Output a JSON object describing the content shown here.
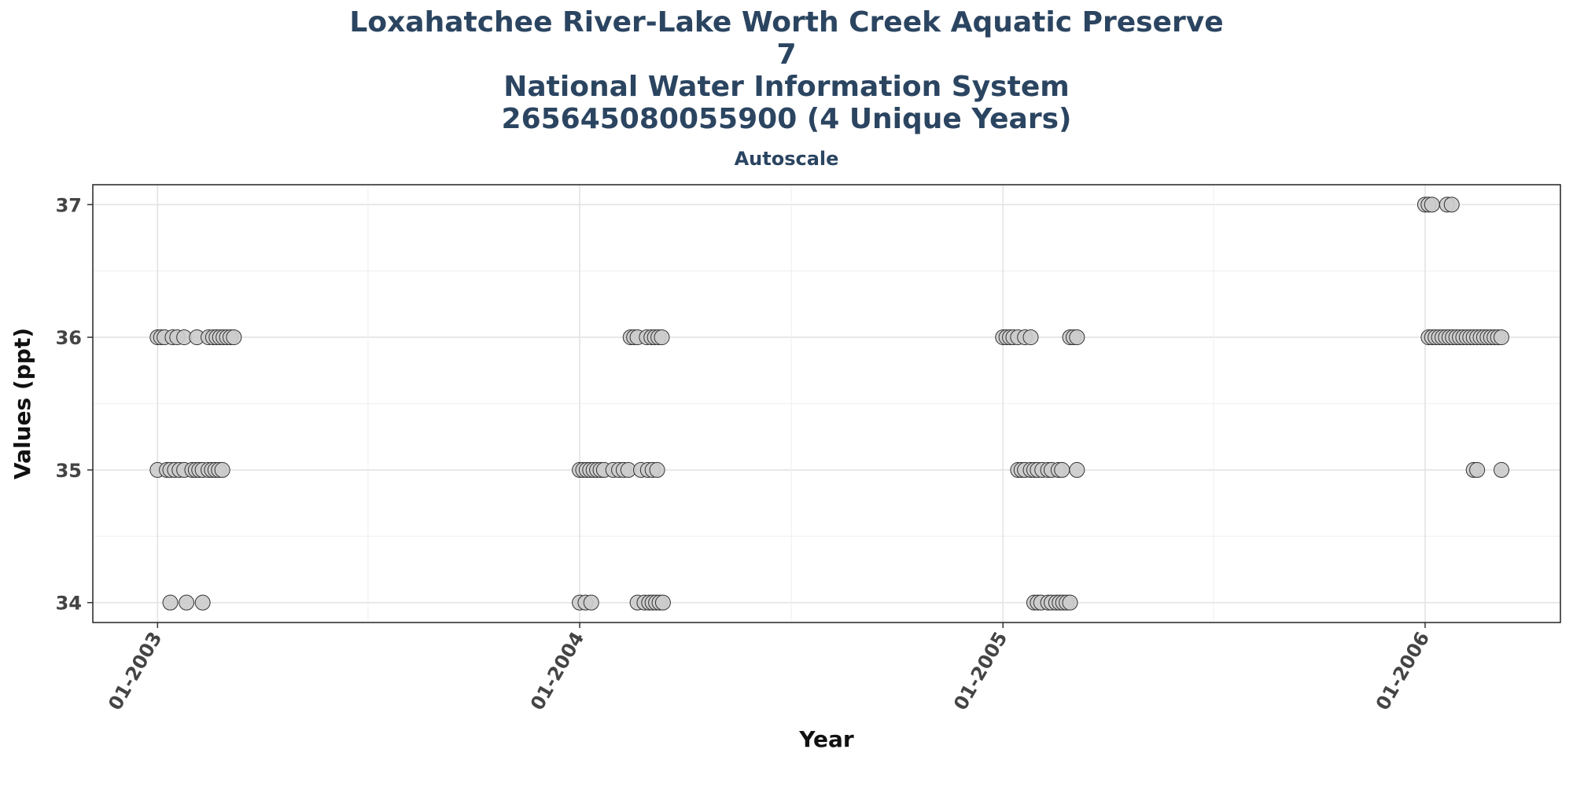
{
  "chart_data": {
    "type": "scatter",
    "title_lines": [
      "Loxahatchee River-Lake Worth Creek Aquatic Preserve",
      "7",
      "National Water Information System",
      "265645080055900 (4 Unique Years)"
    ],
    "subtitle": "Autoscale",
    "xlabel": "Year",
    "ylabel": "Values (ppt)",
    "x_ticks": [
      "01-2003",
      "01-2004",
      "01-2005",
      "01-2006"
    ],
    "y_ticks": [
      34,
      35,
      36,
      37
    ],
    "xlim": [
      "2002-11-06",
      "2006-04-28"
    ],
    "ylim": [
      33.85,
      37.15
    ],
    "grid": true,
    "legend": "none",
    "marker_color": "#cccccc",
    "marker_edge": "#333333",
    "points": [
      {
        "x": "2003-01-01",
        "y": 36
      },
      {
        "x": "2003-01-04",
        "y": 36
      },
      {
        "x": "2003-01-07",
        "y": 36
      },
      {
        "x": "2003-01-14",
        "y": 36
      },
      {
        "x": "2003-01-18",
        "y": 36
      },
      {
        "x": "2003-01-24",
        "y": 36
      },
      {
        "x": "2003-02-04",
        "y": 36
      },
      {
        "x": "2003-02-14",
        "y": 36
      },
      {
        "x": "2003-02-18",
        "y": 36
      },
      {
        "x": "2003-02-21",
        "y": 36
      },
      {
        "x": "2003-02-24",
        "y": 36
      },
      {
        "x": "2003-02-27",
        "y": 36
      },
      {
        "x": "2003-03-02",
        "y": 36
      },
      {
        "x": "2003-03-05",
        "y": 36
      },
      {
        "x": "2003-03-08",
        "y": 36
      },
      {
        "x": "2003-01-01",
        "y": 35
      },
      {
        "x": "2003-01-09",
        "y": 35
      },
      {
        "x": "2003-01-12",
        "y": 35
      },
      {
        "x": "2003-01-16",
        "y": 35
      },
      {
        "x": "2003-01-20",
        "y": 35
      },
      {
        "x": "2003-01-24",
        "y": 35
      },
      {
        "x": "2003-01-31",
        "y": 35
      },
      {
        "x": "2003-02-03",
        "y": 35
      },
      {
        "x": "2003-02-06",
        "y": 35
      },
      {
        "x": "2003-02-09",
        "y": 35
      },
      {
        "x": "2003-02-14",
        "y": 35
      },
      {
        "x": "2003-02-17",
        "y": 35
      },
      {
        "x": "2003-02-20",
        "y": 35
      },
      {
        "x": "2003-02-23",
        "y": 35
      },
      {
        "x": "2003-02-26",
        "y": 35
      },
      {
        "x": "2003-01-12",
        "y": 34
      },
      {
        "x": "2003-01-26",
        "y": 34
      },
      {
        "x": "2003-02-09",
        "y": 34
      },
      {
        "x": "2004-02-14",
        "y": 36
      },
      {
        "x": "2004-02-17",
        "y": 36
      },
      {
        "x": "2004-02-20",
        "y": 36
      },
      {
        "x": "2004-02-28",
        "y": 36
      },
      {
        "x": "2004-03-03",
        "y": 36
      },
      {
        "x": "2004-03-06",
        "y": 36
      },
      {
        "x": "2004-03-09",
        "y": 36
      },
      {
        "x": "2004-03-12",
        "y": 36
      },
      {
        "x": "2004-01-01",
        "y": 35
      },
      {
        "x": "2004-01-04",
        "y": 35
      },
      {
        "x": "2004-01-07",
        "y": 35
      },
      {
        "x": "2004-01-10",
        "y": 35
      },
      {
        "x": "2004-01-13",
        "y": 35
      },
      {
        "x": "2004-01-16",
        "y": 35
      },
      {
        "x": "2004-01-19",
        "y": 35
      },
      {
        "x": "2004-01-22",
        "y": 35
      },
      {
        "x": "2004-01-30",
        "y": 35
      },
      {
        "x": "2004-02-04",
        "y": 35
      },
      {
        "x": "2004-02-08",
        "y": 35
      },
      {
        "x": "2004-02-12",
        "y": 35
      },
      {
        "x": "2004-02-23",
        "y": 35
      },
      {
        "x": "2004-02-29",
        "y": 35
      },
      {
        "x": "2004-03-04",
        "y": 35
      },
      {
        "x": "2004-03-08",
        "y": 35
      },
      {
        "x": "2004-01-01",
        "y": 34
      },
      {
        "x": "2004-01-06",
        "y": 34
      },
      {
        "x": "2004-01-11",
        "y": 34
      },
      {
        "x": "2004-02-20",
        "y": 34
      },
      {
        "x": "2004-02-26",
        "y": 34
      },
      {
        "x": "2004-03-01",
        "y": 34
      },
      {
        "x": "2004-03-04",
        "y": 34
      },
      {
        "x": "2004-03-07",
        "y": 34
      },
      {
        "x": "2004-03-10",
        "y": 34
      },
      {
        "x": "2004-03-13",
        "y": 34
      },
      {
        "x": "2005-01-01",
        "y": 36
      },
      {
        "x": "2005-01-04",
        "y": 36
      },
      {
        "x": "2005-01-07",
        "y": 36
      },
      {
        "x": "2005-01-10",
        "y": 36
      },
      {
        "x": "2005-01-14",
        "y": 36
      },
      {
        "x": "2005-01-20",
        "y": 36
      },
      {
        "x": "2005-01-25",
        "y": 36
      },
      {
        "x": "2005-02-28",
        "y": 36
      },
      {
        "x": "2005-03-03",
        "y": 36
      },
      {
        "x": "2005-03-06",
        "y": 36
      },
      {
        "x": "2005-01-14",
        "y": 35
      },
      {
        "x": "2005-01-17",
        "y": 35
      },
      {
        "x": "2005-01-20",
        "y": 35
      },
      {
        "x": "2005-01-25",
        "y": 35
      },
      {
        "x": "2005-01-28",
        "y": 35
      },
      {
        "x": "2005-01-31",
        "y": 35
      },
      {
        "x": "2005-02-04",
        "y": 35
      },
      {
        "x": "2005-02-09",
        "y": 35
      },
      {
        "x": "2005-02-12",
        "y": 35
      },
      {
        "x": "2005-02-18",
        "y": 35
      },
      {
        "x": "2005-02-21",
        "y": 35
      },
      {
        "x": "2005-03-06",
        "y": 35
      },
      {
        "x": "2005-01-28",
        "y": 34
      },
      {
        "x": "2005-01-31",
        "y": 34
      },
      {
        "x": "2005-02-03",
        "y": 34
      },
      {
        "x": "2005-02-09",
        "y": 34
      },
      {
        "x": "2005-02-12",
        "y": 34
      },
      {
        "x": "2005-02-16",
        "y": 34
      },
      {
        "x": "2005-02-19",
        "y": 34
      },
      {
        "x": "2005-02-22",
        "y": 34
      },
      {
        "x": "2005-02-25",
        "y": 34
      },
      {
        "x": "2005-02-28",
        "y": 34
      },
      {
        "x": "2006-01-01",
        "y": 37
      },
      {
        "x": "2006-01-04",
        "y": 37
      },
      {
        "x": "2006-01-07",
        "y": 37
      },
      {
        "x": "2006-01-20",
        "y": 37
      },
      {
        "x": "2006-01-24",
        "y": 37
      },
      {
        "x": "2006-01-04",
        "y": 36
      },
      {
        "x": "2006-01-07",
        "y": 36
      },
      {
        "x": "2006-01-10",
        "y": 36
      },
      {
        "x": "2006-01-13",
        "y": 36
      },
      {
        "x": "2006-01-16",
        "y": 36
      },
      {
        "x": "2006-01-19",
        "y": 36
      },
      {
        "x": "2006-01-22",
        "y": 36
      },
      {
        "x": "2006-01-25",
        "y": 36
      },
      {
        "x": "2006-01-28",
        "y": 36
      },
      {
        "x": "2006-01-31",
        "y": 36
      },
      {
        "x": "2006-02-03",
        "y": 36
      },
      {
        "x": "2006-02-06",
        "y": 36
      },
      {
        "x": "2006-02-09",
        "y": 36
      },
      {
        "x": "2006-02-12",
        "y": 36
      },
      {
        "x": "2006-02-15",
        "y": 36
      },
      {
        "x": "2006-02-18",
        "y": 36
      },
      {
        "x": "2006-02-21",
        "y": 36
      },
      {
        "x": "2006-02-24",
        "y": 36
      },
      {
        "x": "2006-02-27",
        "y": 36
      },
      {
        "x": "2006-03-02",
        "y": 36
      },
      {
        "x": "2006-03-05",
        "y": 36
      },
      {
        "x": "2006-03-08",
        "y": 36
      },
      {
        "x": "2006-02-12",
        "y": 35
      },
      {
        "x": "2006-02-15",
        "y": 35
      },
      {
        "x": "2006-03-08",
        "y": 35
      }
    ]
  }
}
